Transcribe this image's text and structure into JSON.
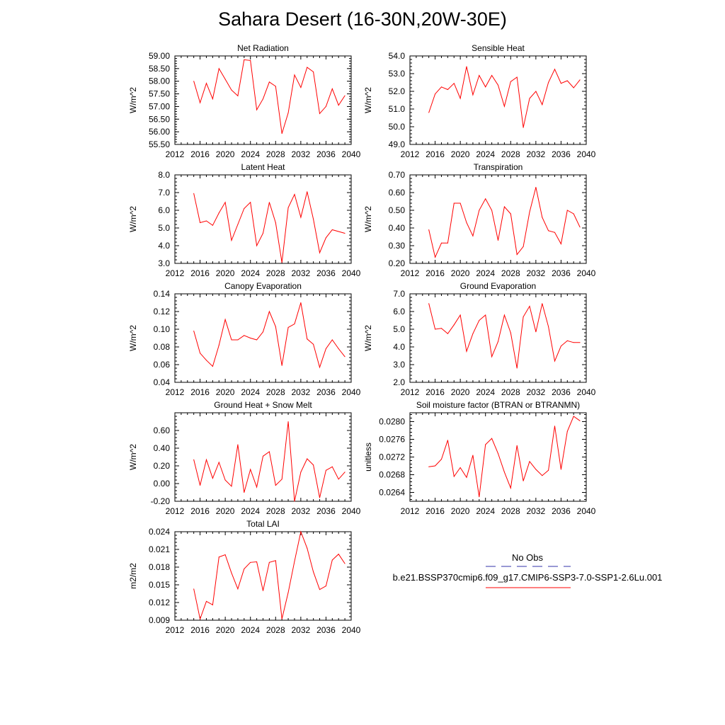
{
  "title": "Sahara Desert (16-30N,20W-30E)",
  "colors": {
    "model": "#ff0000",
    "obs": "#3333aa",
    "axis": "#000000"
  },
  "legend": {
    "obs_label": "No Obs",
    "model_label": "b.e21.BSSP370cmip6.f09_g17.CMIP6-SSP3-7.0-SSP1-2.6Lu.001"
  },
  "chart_data": [
    {
      "type": "line",
      "title": "Net Radiation",
      "ylabel": "W/m^2",
      "xlim": [
        2012,
        2040
      ],
      "ylim": [
        55.5,
        59.0
      ],
      "xticks": [
        "2012",
        "2016",
        "2020",
        "2024",
        "2028",
        "2032",
        "2036",
        "2040"
      ],
      "yticks": [
        "55.50",
        "56.00",
        "56.50",
        "57.00",
        "57.50",
        "58.00",
        "58.50",
        "59.00"
      ],
      "x": [
        2015,
        2016,
        2017,
        2018,
        2019,
        2020,
        2021,
        2022,
        2023,
        2024,
        2025,
        2026,
        2027,
        2028,
        2029,
        2030,
        2031,
        2032,
        2033,
        2034,
        2035,
        2036,
        2037,
        2038,
        2039
      ],
      "series": [
        {
          "values": [
            58.0,
            57.15,
            57.92,
            57.3,
            58.5,
            58.08,
            57.65,
            57.42,
            58.85,
            58.82,
            56.87,
            57.3,
            57.97,
            57.8,
            55.93,
            56.75,
            58.25,
            57.75,
            58.55,
            58.37,
            56.72,
            57.0,
            57.7,
            57.05,
            57.43
          ]
        }
      ]
    },
    {
      "type": "line",
      "title": "Sensible Heat",
      "ylabel": "W/m^2",
      "xlim": [
        2012,
        2040
      ],
      "ylim": [
        49.0,
        54.0
      ],
      "xticks": [
        "2012",
        "2016",
        "2020",
        "2024",
        "2028",
        "2032",
        "2036",
        "2040"
      ],
      "yticks": [
        "49.0",
        "50.0",
        "51.0",
        "52.0",
        "53.0",
        "54.0"
      ],
      "x": [
        2015,
        2016,
        2017,
        2018,
        2019,
        2020,
        2021,
        2022,
        2023,
        2024,
        2025,
        2026,
        2027,
        2028,
        2029,
        2030,
        2031,
        2032,
        2033,
        2034,
        2035,
        2036,
        2037,
        2038,
        2039
      ],
      "series": [
        {
          "values": [
            50.8,
            51.85,
            52.25,
            52.1,
            52.45,
            51.6,
            53.4,
            51.8,
            52.9,
            52.25,
            52.9,
            52.35,
            51.15,
            52.55,
            52.8,
            49.95,
            51.6,
            52.0,
            51.25,
            52.5,
            53.25,
            52.45,
            52.6,
            52.2,
            52.65
          ]
        }
      ]
    },
    {
      "type": "line",
      "title": "Latent Heat",
      "ylabel": "W/m^2",
      "xlim": [
        2012,
        2040
      ],
      "ylim": [
        3.0,
        8.0
      ],
      "xticks": [
        "2012",
        "2016",
        "2020",
        "2024",
        "2028",
        "2032",
        "2036",
        "2040"
      ],
      "yticks": [
        "3.0",
        "4.0",
        "5.0",
        "6.0",
        "7.0",
        "8.0"
      ],
      "x": [
        2015,
        2016,
        2017,
        2018,
        2019,
        2020,
        2021,
        2022,
        2023,
        2024,
        2025,
        2026,
        2027,
        2028,
        2029,
        2030,
        2031,
        2032,
        2033,
        2034,
        2035,
        2036,
        2037,
        2038,
        2039
      ],
      "series": [
        {
          "values": [
            6.95,
            5.3,
            5.4,
            5.15,
            5.85,
            6.45,
            4.3,
            5.2,
            6.1,
            6.45,
            4.0,
            4.7,
            6.45,
            5.3,
            3.05,
            6.15,
            6.9,
            5.6,
            7.05,
            5.5,
            3.6,
            4.45,
            4.9,
            4.8,
            4.7
          ]
        }
      ]
    },
    {
      "type": "line",
      "title": "Transpiration",
      "ylabel": "W/m^2",
      "xlim": [
        2012,
        2040
      ],
      "ylim": [
        0.2,
        0.7
      ],
      "xticks": [
        "2012",
        "2016",
        "2020",
        "2024",
        "2028",
        "2032",
        "2036",
        "2040"
      ],
      "yticks": [
        "0.20",
        "0.30",
        "0.40",
        "0.50",
        "0.60",
        "0.70"
      ],
      "x": [
        2015,
        2016,
        2017,
        2018,
        2019,
        2020,
        2021,
        2022,
        2023,
        2024,
        2025,
        2026,
        2027,
        2028,
        2029,
        2030,
        2031,
        2032,
        2033,
        2034,
        2035,
        2036,
        2037,
        2038,
        2039
      ],
      "series": [
        {
          "values": [
            0.39,
            0.235,
            0.315,
            0.315,
            0.54,
            0.54,
            0.43,
            0.355,
            0.5,
            0.565,
            0.5,
            0.33,
            0.52,
            0.48,
            0.25,
            0.295,
            0.49,
            0.63,
            0.46,
            0.385,
            0.375,
            0.31,
            0.5,
            0.48,
            0.405
          ]
        }
      ]
    },
    {
      "type": "line",
      "title": "Canopy Evaporation",
      "ylabel": "W/m^2",
      "xlim": [
        2012,
        2040
      ],
      "ylim": [
        0.04,
        0.14
      ],
      "xticks": [
        "2012",
        "2016",
        "2020",
        "2024",
        "2028",
        "2032",
        "2036",
        "2040"
      ],
      "yticks": [
        "0.04",
        "0.06",
        "0.08",
        "0.10",
        "0.12",
        "0.14"
      ],
      "x": [
        2015,
        2016,
        2017,
        2018,
        2019,
        2020,
        2021,
        2022,
        2023,
        2024,
        2025,
        2026,
        2027,
        2028,
        2029,
        2030,
        2031,
        2032,
        2033,
        2034,
        2035,
        2036,
        2037,
        2038,
        2039
      ],
      "series": [
        {
          "values": [
            0.098,
            0.073,
            0.065,
            0.058,
            0.082,
            0.111,
            0.088,
            0.088,
            0.093,
            0.09,
            0.088,
            0.097,
            0.12,
            0.103,
            0.059,
            0.102,
            0.106,
            0.13,
            0.089,
            0.083,
            0.057,
            0.078,
            0.088,
            0.078,
            0.069
          ]
        }
      ]
    },
    {
      "type": "line",
      "title": "Ground Evaporation",
      "ylabel": "W/m^2",
      "xlim": [
        2012,
        2040
      ],
      "ylim": [
        2.0,
        7.0
      ],
      "xticks": [
        "2012",
        "2016",
        "2020",
        "2024",
        "2028",
        "2032",
        "2036",
        "2040"
      ],
      "yticks": [
        "2.0",
        "3.0",
        "4.0",
        "5.0",
        "6.0",
        "7.0"
      ],
      "x": [
        2015,
        2016,
        2017,
        2018,
        2019,
        2020,
        2021,
        2022,
        2023,
        2024,
        2025,
        2026,
        2027,
        2028,
        2029,
        2030,
        2031,
        2032,
        2033,
        2034,
        2035,
        2036,
        2037,
        2038,
        2039
      ],
      "series": [
        {
          "values": [
            6.45,
            5.0,
            5.05,
            4.75,
            5.25,
            5.8,
            3.75,
            4.75,
            5.5,
            5.8,
            3.45,
            4.3,
            5.8,
            4.8,
            2.8,
            5.7,
            6.3,
            4.85,
            6.45,
            5.15,
            3.2,
            4.05,
            4.35,
            4.25,
            4.25
          ]
        }
      ]
    },
    {
      "type": "line",
      "title": "Ground Heat + Snow Melt",
      "ylabel": "W/m^2",
      "xlim": [
        2012,
        2040
      ],
      "ylim": [
        -0.2,
        0.8
      ],
      "xticks": [
        "2012",
        "2016",
        "2020",
        "2024",
        "2028",
        "2032",
        "2036",
        "2040"
      ],
      "yticks": [
        "-0.20",
        "0.00",
        "0.20",
        "0.40",
        "0.60"
      ],
      "yticks_values": [
        -0.2,
        0.0,
        0.2,
        0.4,
        0.6
      ],
      "x": [
        2015,
        2016,
        2017,
        2018,
        2019,
        2020,
        2021,
        2022,
        2023,
        2024,
        2025,
        2026,
        2027,
        2028,
        2029,
        2030,
        2031,
        2032,
        2033,
        2034,
        2035,
        2036,
        2037,
        2038,
        2039
      ],
      "series": [
        {
          "values": [
            0.27,
            -0.02,
            0.27,
            0.06,
            0.24,
            0.04,
            -0.03,
            0.44,
            -0.1,
            0.16,
            -0.04,
            0.31,
            0.36,
            -0.02,
            0.05,
            0.7,
            -0.2,
            0.13,
            0.28,
            0.21,
            -0.16,
            0.15,
            0.19,
            0.05,
            0.13
          ]
        }
      ]
    },
    {
      "type": "line",
      "title": "Soil moisture factor (BTRAN or BTRANMN)",
      "ylabel": "unitless",
      "xlim": [
        2012,
        2040
      ],
      "ylim": [
        0.0262,
        0.0282
      ],
      "xticks": [
        "2012",
        "2016",
        "2020",
        "2024",
        "2028",
        "2032",
        "2036",
        "2040"
      ],
      "yticks": [
        "0.0264",
        "0.0268",
        "0.0272",
        "0.0276",
        "0.0280"
      ],
      "yticks_values": [
        0.0264,
        0.0268,
        0.0272,
        0.0276,
        0.028
      ],
      "x": [
        2015,
        2016,
        2017,
        2018,
        2019,
        2020,
        2021,
        2022,
        2023,
        2024,
        2025,
        2026,
        2027,
        2028,
        2029,
        2030,
        2031,
        2032,
        2033,
        2034,
        2035,
        2036,
        2037,
        2038,
        2039
      ],
      "series": [
        {
          "values": [
            0.02698,
            0.027,
            0.02715,
            0.02758,
            0.02676,
            0.02696,
            0.02674,
            0.02724,
            0.0263,
            0.02748,
            0.02762,
            0.02728,
            0.02686,
            0.0265,
            0.02746,
            0.02666,
            0.0271,
            0.02692,
            0.02678,
            0.0269,
            0.0279,
            0.02692,
            0.02778,
            0.02812,
            0.02802
          ]
        }
      ]
    },
    {
      "type": "line",
      "title": "Total LAI",
      "ylabel": "m2/m2",
      "xlim": [
        2012,
        2040
      ],
      "ylim": [
        0.009,
        0.024
      ],
      "xticks": [
        "2012",
        "2016",
        "2020",
        "2024",
        "2028",
        "2032",
        "2036",
        "2040"
      ],
      "yticks": [
        "0.009",
        "0.012",
        "0.015",
        "0.018",
        "0.021",
        "0.024"
      ],
      "x": [
        2015,
        2016,
        2017,
        2018,
        2019,
        2020,
        2021,
        2022,
        2023,
        2024,
        2025,
        2026,
        2027,
        2028,
        2029,
        2030,
        2031,
        2032,
        2033,
        2034,
        2035,
        2036,
        2037,
        2038,
        2039
      ],
      "series": [
        {
          "values": [
            0.0143,
            0.0092,
            0.0122,
            0.0116,
            0.0197,
            0.0201,
            0.017,
            0.0143,
            0.0177,
            0.0188,
            0.0189,
            0.014,
            0.0188,
            0.0191,
            0.0092,
            0.0137,
            0.019,
            0.024,
            0.0212,
            0.0172,
            0.0142,
            0.0148,
            0.0192,
            0.0202,
            0.0186
          ]
        }
      ]
    }
  ]
}
